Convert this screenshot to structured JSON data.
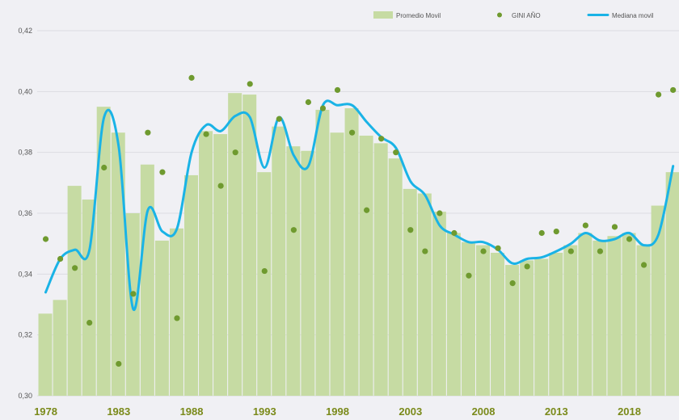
{
  "chart_data": {
    "type": "bar",
    "title": "",
    "xlabel": "",
    "ylabel": "",
    "ylim": [
      0.3,
      0.42
    ],
    "y_ticks": [
      "0,30",
      "0,32",
      "0,34",
      "0,36",
      "0,38",
      "0,40",
      "0,42"
    ],
    "y_tick_values": [
      0.3,
      0.32,
      0.34,
      0.36,
      0.38,
      0.4,
      0.42
    ],
    "x_tick_labels": [
      "1978",
      "1983",
      "1988",
      "1993",
      "1998",
      "2003",
      "2008",
      "2013",
      "2018"
    ],
    "grid": true,
    "legend_position": "top-right",
    "colors": {
      "bars": "#c6dba3",
      "points": "#6f9a2f",
      "line": "#1ab3e6",
      "grid": "#dcdce2",
      "xticks": "#7a8a1a"
    },
    "years": [
      1978,
      1979,
      1980,
      1981,
      1982,
      1983,
      1984,
      1985,
      1986,
      1987,
      1988,
      1989,
      1990,
      1991,
      1992,
      1993,
      1994,
      1995,
      1996,
      1997,
      1998,
      1999,
      2000,
      2001,
      2002,
      2003,
      2004,
      2005,
      2006,
      2007,
      2008,
      2009,
      2010,
      2011,
      2012,
      2013,
      2014,
      2015,
      2016,
      2017,
      2018,
      2019,
      2020,
      2021
    ],
    "series": [
      {
        "name": "Promedio Movil",
        "type": "bar",
        "values": [
          0.327,
          0.3315,
          0.369,
          0.3645,
          0.395,
          0.3865,
          0.36,
          0.376,
          0.351,
          0.355,
          0.3725,
          0.387,
          0.386,
          0.3995,
          0.399,
          0.3735,
          0.3885,
          0.382,
          0.3805,
          0.394,
          0.3865,
          0.3945,
          0.3855,
          0.383,
          0.378,
          0.368,
          0.3665,
          0.3605,
          0.3535,
          0.3505,
          0.3495,
          0.347,
          0.343,
          0.3445,
          0.345,
          0.347,
          0.3495,
          0.3535,
          0.351,
          0.3525,
          0.3535,
          0.3495,
          0.3625,
          0.3735
        ]
      },
      {
        "name": "GINI AÑO",
        "type": "scatter",
        "values": [
          0.3515,
          0.345,
          0.342,
          0.324,
          0.375,
          0.3105,
          0.3335,
          0.3865,
          0.3735,
          0.3255,
          0.4045,
          0.386,
          0.369,
          0.38,
          0.4025,
          0.341,
          0.391,
          0.3545,
          0.3965,
          0.3945,
          0.4005,
          0.3865,
          0.361,
          0.3845,
          0.38,
          0.3545,
          0.3475,
          0.36,
          0.3535,
          0.3395,
          0.3475,
          0.3485,
          0.337,
          0.3425,
          0.3535,
          0.354,
          0.3475,
          0.356,
          0.3475,
          0.3555,
          0.3515,
          0.343,
          0.399,
          0.4005
        ]
      },
      {
        "name": "Mediana movil",
        "type": "line",
        "values": [
          0.334,
          0.345,
          0.348,
          0.348,
          0.3915,
          0.382,
          0.3285,
          0.361,
          0.354,
          0.355,
          0.38,
          0.389,
          0.387,
          0.392,
          0.3915,
          0.375,
          0.3915,
          0.379,
          0.3755,
          0.3955,
          0.3955,
          0.3955,
          0.39,
          0.385,
          0.3815,
          0.3705,
          0.366,
          0.356,
          0.353,
          0.3505,
          0.3505,
          0.348,
          0.3435,
          0.345,
          0.3455,
          0.3475,
          0.35,
          0.3535,
          0.351,
          0.3515,
          0.3535,
          0.3495,
          0.353,
          0.3755
        ]
      }
    ]
  }
}
